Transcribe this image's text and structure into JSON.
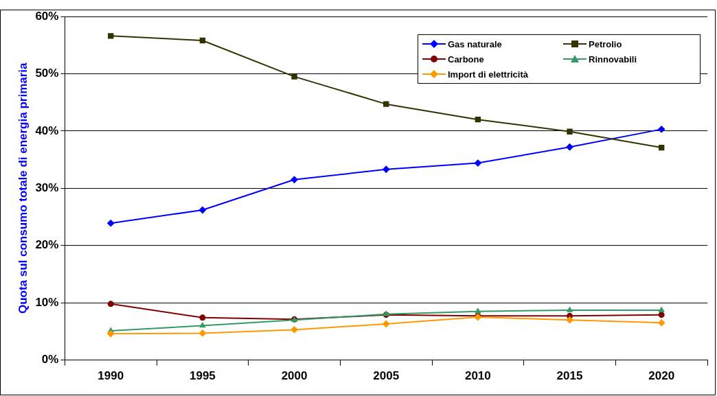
{
  "chart_data": {
    "type": "line",
    "ylabel": "Quota sul consumo totale di energia primaria",
    "categories": [
      "1990",
      "1995",
      "2000",
      "2005",
      "2010",
      "2015",
      "2020"
    ],
    "series": [
      {
        "name": "Gas naturale",
        "color": "#0000ff",
        "marker": "diamond",
        "values": [
          23.9,
          26.2,
          31.5,
          33.3,
          34.4,
          37.2,
          40.3
        ]
      },
      {
        "name": "Petrolio",
        "color": "#333300",
        "marker": "square",
        "values": [
          56.6,
          55.8,
          49.5,
          44.7,
          42.0,
          39.9,
          37.1
        ]
      },
      {
        "name": "Carbone",
        "color": "#800000",
        "marker": "circle",
        "values": [
          9.8,
          7.4,
          7.1,
          7.9,
          7.7,
          7.7,
          7.9
        ]
      },
      {
        "name": "Rinnovabili",
        "color": "#339966",
        "marker": "triangle",
        "values": [
          5.1,
          6.0,
          7.0,
          8.0,
          8.5,
          8.7,
          8.7
        ]
      },
      {
        "name": "Import di elettricità",
        "color": "#ff9900",
        "marker": "diamond",
        "values": [
          4.6,
          4.7,
          5.3,
          6.3,
          7.5,
          7.0,
          6.5
        ]
      }
    ],
    "ylim": [
      0,
      60
    ],
    "yticks": [
      {
        "value": 0,
        "label": "0%"
      },
      {
        "value": 10,
        "label": "10%"
      },
      {
        "value": 20,
        "label": "20%"
      },
      {
        "value": 30,
        "label": "30%"
      },
      {
        "value": 40,
        "label": "40%"
      },
      {
        "value": 50,
        "label": "50%"
      },
      {
        "value": 60,
        "label": "60%"
      }
    ],
    "grid": "y",
    "legend": "top right",
    "line_style": "solid"
  }
}
